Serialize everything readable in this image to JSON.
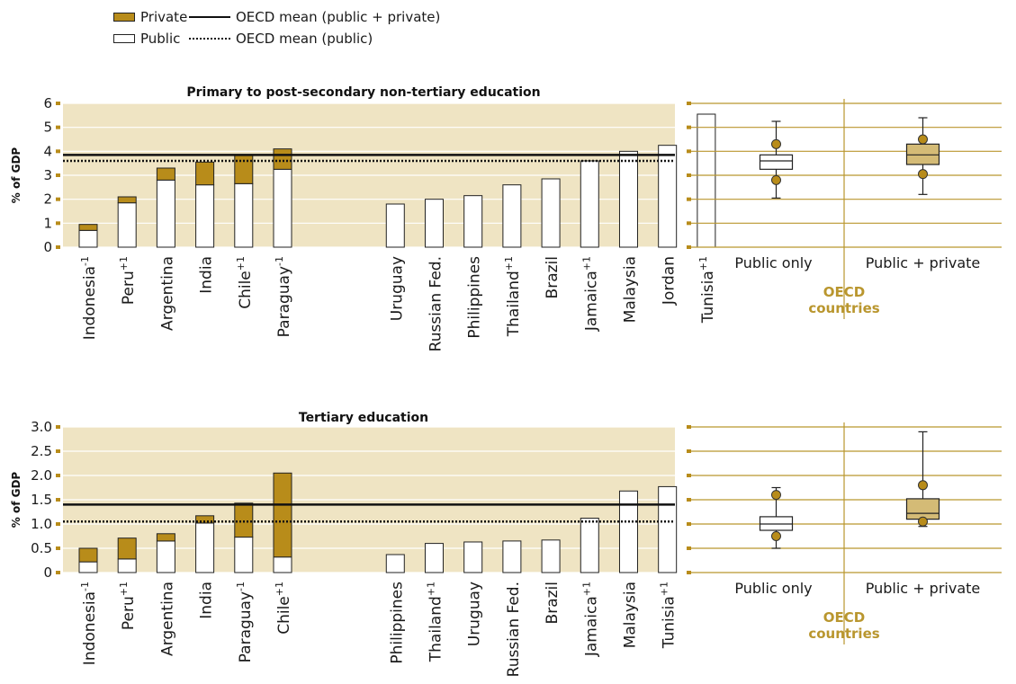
{
  "legend": {
    "private": "Private",
    "public": "Public",
    "mean_total": "OECD mean (public + private)",
    "mean_public": "OECD mean (public)"
  },
  "colors": {
    "private": "#b88c1a",
    "public": "#ffffff",
    "panel_bg": "#efe4c3",
    "oecd_accent": "#b9962e",
    "box_fill_total": "#d4bb76"
  },
  "chart_data": [
    {
      "type": "bar",
      "stacked": true,
      "title": "Primary to post-secondary non-tertiary  education",
      "ylabel": "% of GDP",
      "ylim": [
        0,
        6
      ],
      "yticks": [
        "0",
        "1",
        "2",
        "3",
        "4",
        "5",
        "6"
      ],
      "oecd_mean_total": 3.85,
      "oecd_mean_public": 3.6,
      "groups": [
        {
          "categories": [
            {
              "name": "Indonesia",
              "sup": "-1"
            },
            {
              "name": "Peru",
              "sup": "+1"
            },
            {
              "name": "Argentina",
              "sup": ""
            },
            {
              "name": "India",
              "sup": ""
            },
            {
              "name": "Chile",
              "sup": "+1"
            },
            {
              "name": "Paraguay",
              "sup": "-1"
            }
          ],
          "public": [
            0.7,
            1.85,
            2.8,
            2.6,
            2.65,
            3.25
          ],
          "private": [
            0.25,
            0.25,
            0.5,
            0.95,
            1.2,
            0.85
          ]
        },
        {
          "categories": [
            {
              "name": "Uruguay",
              "sup": ""
            },
            {
              "name": "Russian Fed.",
              "sup": ""
            },
            {
              "name": "Philippines",
              "sup": ""
            },
            {
              "name": "Thailand",
              "sup": "+1"
            },
            {
              "name": "Brazil",
              "sup": ""
            },
            {
              "name": "Jamaica",
              "sup": "+1"
            },
            {
              "name": "Malaysia",
              "sup": ""
            },
            {
              "name": "Jordan",
              "sup": ""
            },
            {
              "name": "Tunisia",
              "sup": "+1"
            }
          ],
          "public": [
            1.8,
            2.0,
            2.15,
            2.6,
            2.85,
            3.6,
            4.0,
            4.25,
            5.55
          ],
          "private": [
            0,
            0,
            0,
            0,
            0,
            0,
            0,
            0,
            0
          ]
        }
      ],
      "boxplots": {
        "categories": [
          "Public only",
          "Public + private"
        ],
        "footer": [
          "OECD",
          "countries"
        ],
        "ylim": [
          0,
          6
        ],
        "series": [
          {
            "min": 2.05,
            "q1": 3.25,
            "median": 3.6,
            "q3": 3.85,
            "max": 5.25,
            "dots": [
              2.8,
              4.3
            ]
          },
          {
            "min": 2.2,
            "q1": 3.45,
            "median": 3.85,
            "q3": 4.3,
            "max": 5.4,
            "dots": [
              3.05,
              4.5
            ]
          }
        ]
      }
    },
    {
      "type": "bar",
      "stacked": true,
      "title": "Tertiary education",
      "ylabel": "% of GDP",
      "ylim": [
        0,
        3
      ],
      "yticks": [
        "0",
        "0.5",
        "1.0",
        "1.5",
        "2.0",
        "2.5",
        "3.0"
      ],
      "oecd_mean_total": 1.4,
      "oecd_mean_public": 1.05,
      "groups": [
        {
          "categories": [
            {
              "name": "Indonesia",
              "sup": "-1"
            },
            {
              "name": "Peru",
              "sup": "+1"
            },
            {
              "name": "Argentina",
              "sup": ""
            },
            {
              "name": "India",
              "sup": ""
            },
            {
              "name": "Paraguay",
              "sup": "-1"
            },
            {
              "name": "Chile",
              "sup": "+1"
            }
          ],
          "public": [
            0.22,
            0.28,
            0.65,
            1.02,
            0.73,
            0.32
          ],
          "private": [
            0.28,
            0.43,
            0.15,
            0.15,
            0.7,
            1.73
          ]
        },
        {
          "categories": [
            {
              "name": "Philippines",
              "sup": ""
            },
            {
              "name": "Thailand",
              "sup": "+1"
            },
            {
              "name": "Uruguay",
              "sup": ""
            },
            {
              "name": "Russian Fed.",
              "sup": ""
            },
            {
              "name": "Brazil",
              "sup": ""
            },
            {
              "name": "Jamaica",
              "sup": "+1"
            },
            {
              "name": "Malaysia",
              "sup": ""
            },
            {
              "name": "Tunisia",
              "sup": "+1"
            }
          ],
          "public": [
            0.37,
            0.6,
            0.63,
            0.65,
            0.67,
            1.12,
            1.68,
            1.77
          ],
          "private": [
            0,
            0,
            0,
            0,
            0,
            0,
            0,
            0
          ]
        }
      ],
      "boxplots": {
        "categories": [
          "Public only",
          "Public + private"
        ],
        "footer": [
          "OECD",
          "countries"
        ],
        "ylim": [
          0,
          3
        ],
        "series": [
          {
            "min": 0.5,
            "q1": 0.87,
            "median": 1.0,
            "q3": 1.15,
            "max": 1.75,
            "dots": [
              0.75,
              1.6
            ]
          },
          {
            "min": 0.95,
            "q1": 1.1,
            "median": 1.22,
            "q3": 1.52,
            "max": 2.9,
            "dots": [
              1.05,
              1.8
            ]
          }
        ]
      }
    }
  ]
}
